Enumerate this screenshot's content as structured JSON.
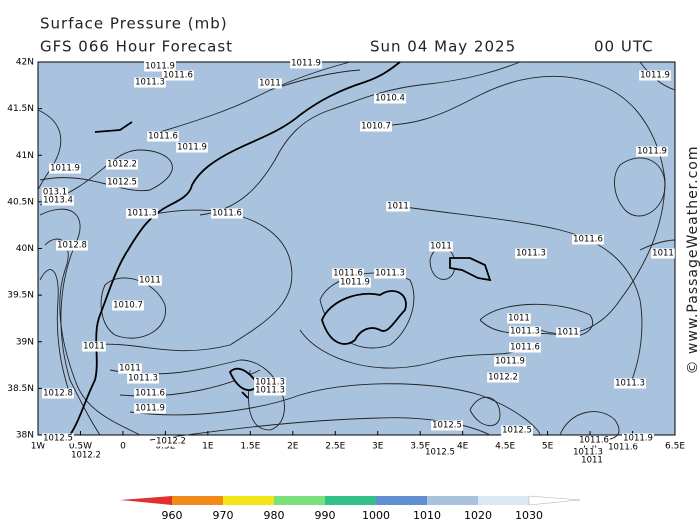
{
  "header": {
    "title": "Surface Pressure (mb)",
    "subtitle": "GFS 066 Hour Forecast",
    "date": "Sun 04 May 2025",
    "time": "00 UTC"
  },
  "map": {
    "lat_labels": [
      "42N",
      "41.5N",
      "41N",
      "40.5N",
      "40N",
      "39.5N",
      "39N",
      "38.5N",
      "38N"
    ],
    "lon_labels": [
      "1W",
      "0.5W",
      "0",
      "0.5E",
      "1E",
      "1.5E",
      "2E",
      "2.5E",
      "3E",
      "3.5E",
      "4E",
      "4.5E",
      "5E",
      "5.5E",
      "6E",
      "6.5E"
    ],
    "isobar_labels": [
      "1011.9",
      "1011.6",
      "1011.3",
      "1011",
      "1010.4",
      "1010.7",
      "1011.6",
      "1011.9",
      "1011.9",
      "1012.2",
      "1012.5",
      "013.1",
      "1013.4",
      "1011.3",
      "1011.6",
      "1011",
      "1011.9",
      "1011.6",
      "1011.3",
      "1011",
      "1012.8",
      "1011",
      "1011.6",
      "1011.3",
      "1011.9",
      "1010.7",
      "1011",
      "1011",
      "1011.3",
      "1011",
      "1011.6",
      "1011",
      "1011.3",
      "1011.9",
      "1011.6",
      "1012.2",
      "1011.3",
      "1011.3",
      "1012.8",
      "1011.9",
      "1011.3",
      "1012.5",
      "1012.5",
      "1011.6",
      "1011.6",
      "1011.3",
      "1011",
      "1011.9",
      "1012.5",
      "1012.2",
      "1012.5",
      "1012.2",
      "1011.9",
      "1011.9",
      "1011"
    ]
  },
  "colorbar": {
    "labels": [
      "960",
      "970",
      "980",
      "990",
      "1000",
      "1010",
      "1020",
      "1030"
    ]
  },
  "watermark": "© www.PassageWeather.com"
}
